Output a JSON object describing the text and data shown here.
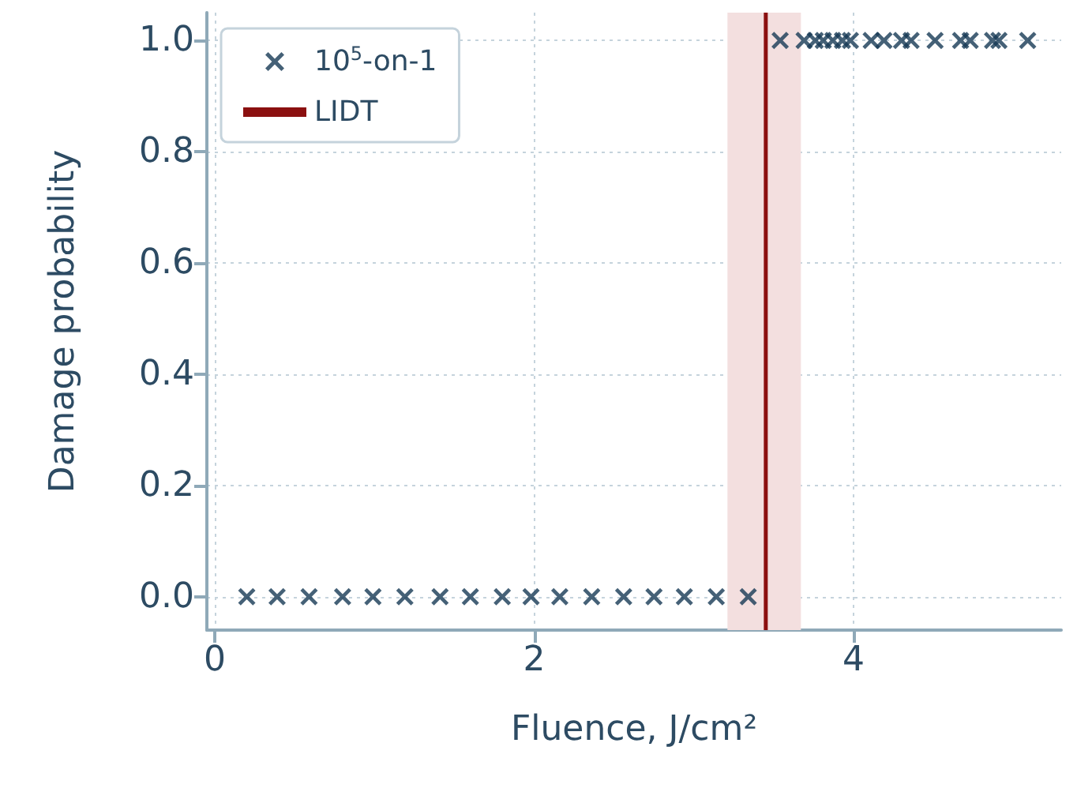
{
  "chart_data": {
    "type": "scatter",
    "xlabel": "Fluence, J/cm²",
    "ylabel": "Damage probability",
    "xlim": [
      -0.05,
      5.3
    ],
    "ylim": [
      -0.06,
      1.05
    ],
    "xticks": [
      0,
      2,
      4
    ],
    "yticks": [
      {
        "value": 0,
        "label": "0.0"
      },
      {
        "value": 0.2,
        "label": "0.2"
      },
      {
        "value": 0.4,
        "label": "0.4"
      },
      {
        "value": 0.6,
        "label": "0.6"
      },
      {
        "value": 0.8,
        "label": "0.8"
      },
      {
        "value": 1,
        "label": "1.0"
      }
    ],
    "series": [
      {
        "name": "10$^{5}$-on-1",
        "color": "#163a55",
        "x": [
          0.2,
          0.39,
          0.59,
          0.8,
          0.99,
          1.19,
          1.41,
          1.6,
          1.8,
          1.98,
          2.16,
          2.36,
          2.56,
          2.75,
          2.94,
          3.14,
          3.34,
          3.54,
          3.69,
          3.76,
          3.81,
          3.87,
          3.93,
          3.98,
          4.11,
          4.19,
          4.3,
          4.36,
          4.51,
          4.67,
          4.73,
          4.87,
          4.91,
          5.09
        ],
        "values": [
          0,
          0,
          0,
          0,
          0,
          0,
          0,
          0,
          0,
          0,
          0,
          0,
          0,
          0,
          0,
          0,
          0,
          1,
          1,
          1,
          1,
          1,
          1,
          1,
          1,
          1,
          1,
          1,
          1,
          1,
          1,
          1,
          1,
          1
        ]
      },
      {
        "name": "LIDT",
        "type": "line",
        "marker": "none",
        "color": "#8b1010",
        "x": [
          3.45,
          3.45
        ],
        "values": [
          -0.06,
          1.05
        ]
      }
    ],
    "bands": [
      {
        "axis": "x",
        "from": 3.21,
        "to": 3.67,
        "color": "#f3dfdf"
      }
    ],
    "grid": true,
    "legend": "top left",
    "marker": "cross"
  }
}
